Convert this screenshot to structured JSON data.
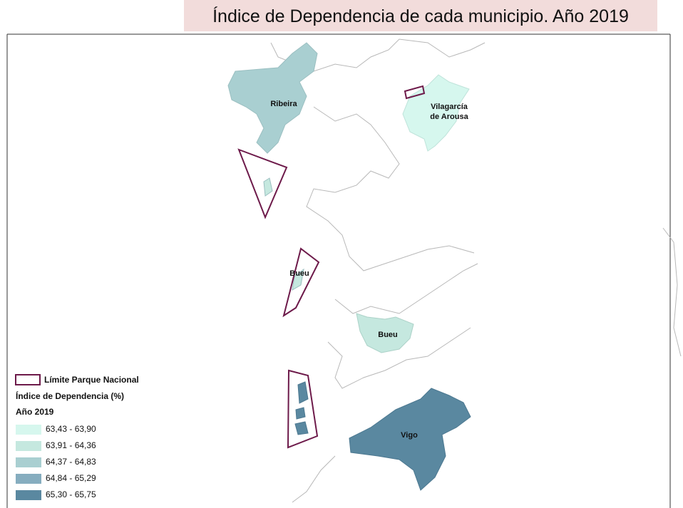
{
  "title": "Índice de Dependencia de cada municipio. Año 2019",
  "legend": {
    "park_limit": "Límite Parque Nacional",
    "park_color": "#6d1a4a",
    "title": "Índice de Dependencia (%)",
    "subtitle": "Año 2019",
    "classes": [
      {
        "label": "63,43 - 63,90",
        "color": "#d6f7ee"
      },
      {
        "label": "63,91 - 64,36",
        "color": "#c5e8df"
      },
      {
        "label": "64,37 - 64,83",
        "color": "#a9cfd1"
      },
      {
        "label": "64,84 - 65,29",
        "color": "#86adbf"
      },
      {
        "label": "65,30 - 65,75",
        "color": "#5a88a0"
      }
    ]
  },
  "regions": [
    {
      "label": [
        "Ribeira"
      ],
      "color": "#a9cfd1"
    },
    {
      "label": [
        "Vilagarcía",
        "de Arousa"
      ],
      "color": "#d6f7ee"
    },
    {
      "label": [
        "Bueu"
      ],
      "color": "#c5e8df"
    },
    {
      "label": [
        "Bueu"
      ],
      "color": "#c5e8df"
    },
    {
      "label": [
        "Vigo"
      ],
      "color": "#5a88a0"
    }
  ]
}
